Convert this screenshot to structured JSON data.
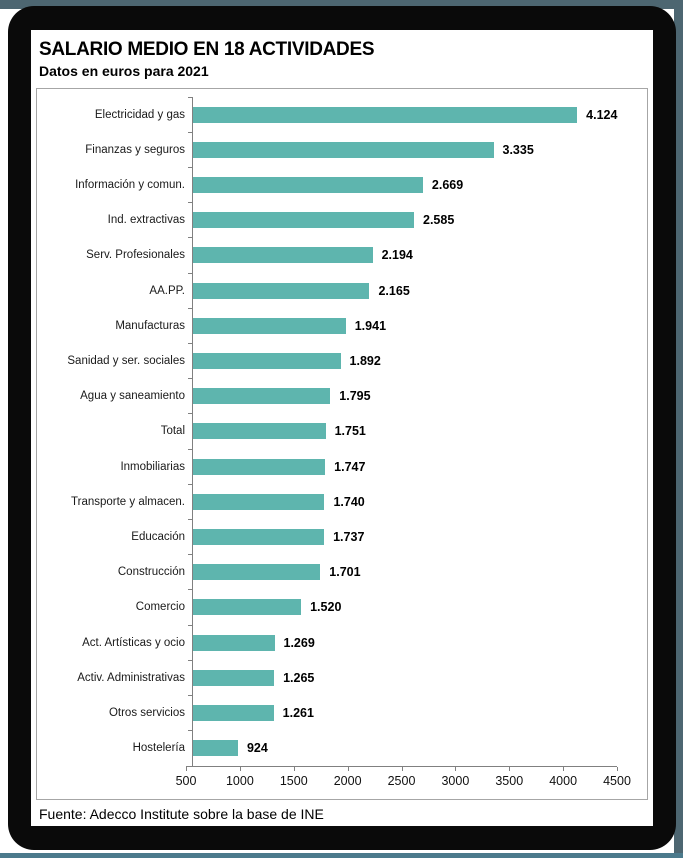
{
  "header": {
    "title": "SALARIO MEDIO EN 18 ACTIVIDADES",
    "subtitle": "Datos en euros para 2021"
  },
  "footer": {
    "source": "Fuente: Adecco Institute sobre la base de INE"
  },
  "colors": {
    "bar": "#5eb5ae",
    "axis": "#808080",
    "plot_border": "#a6a6a6",
    "frame": "#0a0a0a",
    "edge_slate": "#4d6671",
    "edge_bottom": "#4b7a8c"
  },
  "chart_data": {
    "type": "bar",
    "orientation": "horizontal",
    "title": "SALARIO MEDIO EN 18 ACTIVIDADES",
    "subtitle": "Datos en euros para 2021",
    "categories": [
      "Electricidad y gas",
      "Finanzas y seguros",
      "Información y comun.",
      "Ind. extractivas",
      "Serv. Profesionales",
      "AA.PP.",
      "Manufacturas",
      "Sanidad y ser. sociales",
      "Agua y saneamiento",
      "Total",
      "Inmobiliarias",
      "Transporte y almacen.",
      "Educación",
      "Construcción",
      "Comercio",
      "Act. Artísticas y ocio",
      "Activ. Administrativas",
      "Otros servicios",
      "Hostelería"
    ],
    "values": [
      4124,
      3335,
      2669,
      2585,
      2194,
      2165,
      1941,
      1892,
      1795,
      1751,
      1747,
      1740,
      1737,
      1701,
      1520,
      1269,
      1265,
      1261,
      924
    ],
    "value_labels": [
      "4.124",
      "3.335",
      "2.669",
      "2.585",
      "2.194",
      "2.165",
      "1.941",
      "1.892",
      "1.795",
      "1.751",
      "1.747",
      "1.740",
      "1.737",
      "1.701",
      "1.520",
      "1.269",
      "1.265",
      "1.261",
      "924"
    ],
    "xlim": [
      500,
      4500
    ],
    "xticks": [
      500,
      1000,
      1500,
      2000,
      2500,
      3000,
      3500,
      4000,
      4500
    ],
    "grid": false,
    "legend": false,
    "xlabel": "",
    "ylabel": "",
    "source": "Fuente: Adecco Institute sobre la base de INE"
  }
}
